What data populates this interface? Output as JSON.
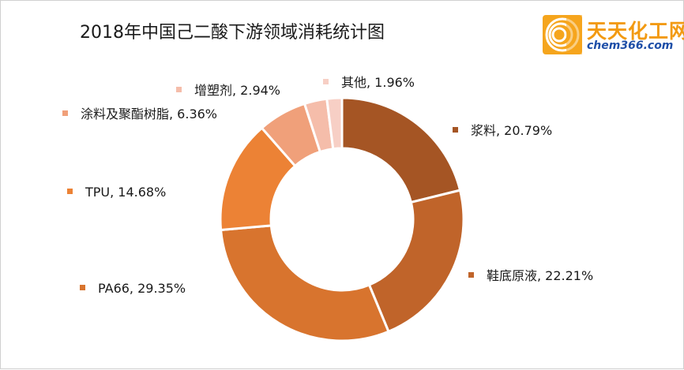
{
  "chart_data": {
    "type": "pie",
    "title": "2018年中国己二酸下游领域消耗统计图",
    "categories": [
      "浆料",
      "鞋底原液",
      "PA66",
      "TPU",
      "涂料及聚酯树脂",
      "增塑剂",
      "其他"
    ],
    "values": [
      20.79,
      22.21,
      29.35,
      14.68,
      6.36,
      2.94,
      1.96
    ],
    "unit": "%",
    "labels": [
      "浆料, 20.79%",
      "鞋底原液, 22.21%",
      "PA66, 29.35%",
      "TPU, 14.68%",
      "涂料及聚酯树脂, 6.36%",
      "增塑剂, 2.94%",
      "其他, 1.96%"
    ],
    "colors": [
      "#a55524",
      "#c0642a",
      "#d8742e",
      "#ec8235",
      "#f0a07a",
      "#f5bdaa",
      "#f7cfc5"
    ],
    "donut": true,
    "legend": "none"
  },
  "logo": {
    "main_text": "天天化工网",
    "sub_text": "chem366.com"
  }
}
